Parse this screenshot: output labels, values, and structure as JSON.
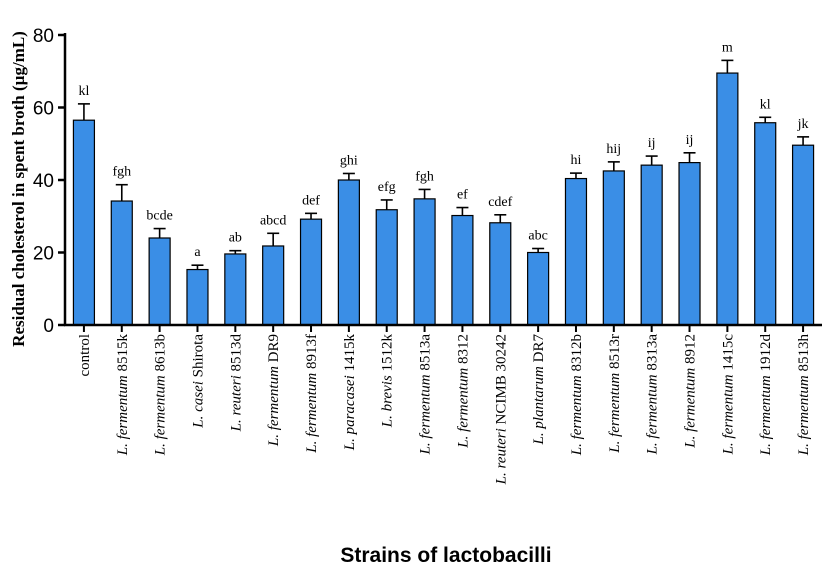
{
  "chart_data": {
    "type": "bar",
    "ylabel": "Residual cholesterol in spent broth (µg/mL)",
    "xlabel": "Strains of lactobacilli",
    "ylim": [
      0,
      80
    ],
    "yticks": [
      0,
      20,
      40,
      60,
      80
    ],
    "bar_color": "#3a8ee6",
    "categories": [
      {
        "italic": "",
        "plain": "control"
      },
      {
        "italic": "L. fermentum",
        "plain": " 8515k"
      },
      {
        "italic": "L. fermentum",
        "plain": " 8613b"
      },
      {
        "italic": "L. casei",
        "plain": " Shirota"
      },
      {
        "italic": "L. reuteri",
        "plain": " 8513d"
      },
      {
        "italic": "L. fermentum",
        "plain": " DR9"
      },
      {
        "italic": "L. fermentum",
        "plain": " 8913f"
      },
      {
        "italic": "L. paracasei",
        "plain": " 1415k"
      },
      {
        "italic": "L. brevis",
        "plain": " 1512k"
      },
      {
        "italic": "L. fermentum",
        "plain": " 8513a"
      },
      {
        "italic": "L. fermentum",
        "plain": " 8312"
      },
      {
        "italic": "L. reuteri",
        "plain": " NCIMB 30242"
      },
      {
        "italic": "L. plantarum",
        "plain": " DR7"
      },
      {
        "italic": "L. fermentum",
        "plain": " 8312b"
      },
      {
        "italic": "L. fermentum",
        "plain": " 8513r"
      },
      {
        "italic": "L. fermentum",
        "plain": " 8313a"
      },
      {
        "italic": "L. fermentum",
        "plain": " 8912"
      },
      {
        "italic": "L. fermentum",
        "plain": " 1415c"
      },
      {
        "italic": "L. fermentum",
        "plain": " 1912d"
      },
      {
        "italic": "L. fermentum",
        "plain": " 8513h"
      }
    ],
    "values": [
      56.5,
      34.2,
      24.0,
      15.3,
      19.6,
      21.8,
      29.2,
      40.0,
      31.8,
      34.8,
      30.2,
      28.2,
      20.0,
      40.4,
      42.5,
      44.1,
      44.8,
      69.5,
      55.8,
      49.6
    ],
    "errors": [
      4.5,
      4.5,
      2.6,
      1.2,
      0.9,
      3.5,
      1.6,
      1.8,
      2.7,
      2.6,
      2.2,
      2.2,
      1.1,
      1.5,
      2.5,
      2.5,
      2.7,
      3.5,
      1.5,
      2.3
    ],
    "significance": [
      "kl",
      "fgh",
      "bcde",
      "a",
      "ab",
      "abcd",
      "def",
      "ghi",
      "efg",
      "fgh",
      "ef",
      "cdef",
      "abc",
      "hi",
      "hij",
      "ij",
      "ij",
      "m",
      "kl",
      "jk"
    ]
  }
}
